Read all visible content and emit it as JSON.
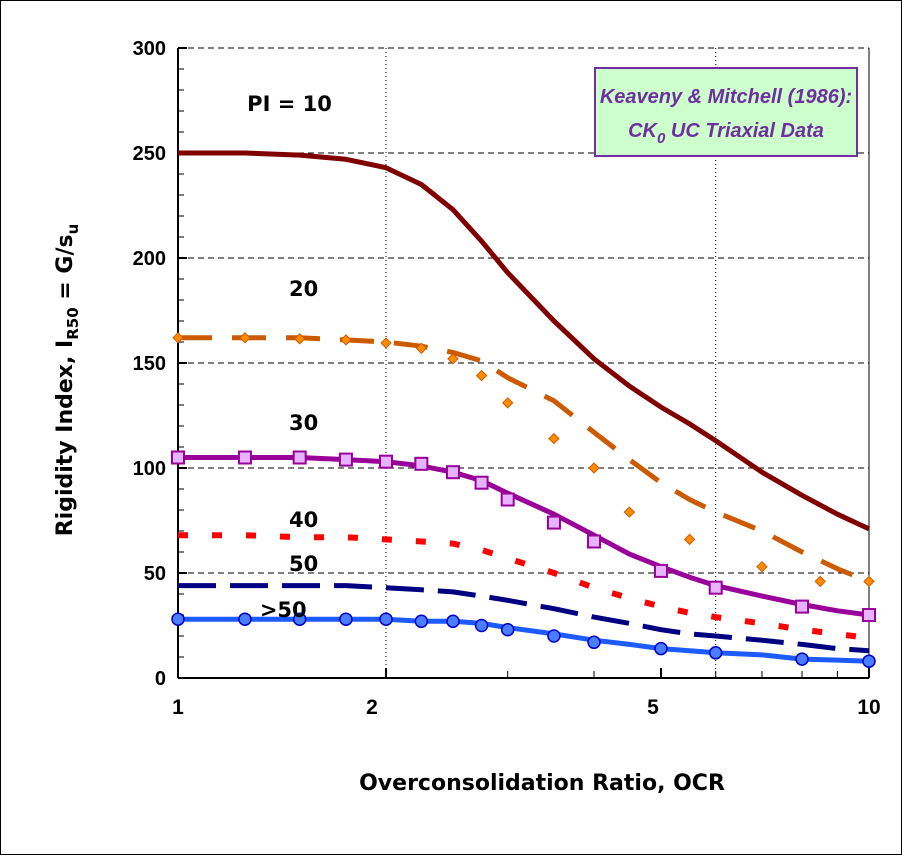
{
  "chart_data": {
    "type": "line",
    "title": "",
    "xlabel": "Overconsolidation Ratio, OCR",
    "ylabel": {
      "main": "Rigidity Index, I",
      "sub": "R50",
      "eq": " = G/s",
      "eq_sub": "u"
    },
    "xscale": "log",
    "xlim": [
      1,
      10
    ],
    "ylim": [
      0,
      300
    ],
    "xticks": [
      1,
      2,
      5,
      10
    ],
    "yticks": [
      0,
      50,
      100,
      150,
      200,
      250,
      300
    ],
    "grid": "dashed horizontal lines at 50-unit steps, dotted vertical lines at OCR 2 and 6",
    "legend_box": {
      "line1": "Keaveny & Mitchell (1986):",
      "line2_pre": "CK",
      "line2_sub": "0",
      "line2_post": " UC Triaxial Data",
      "fill": "#CCFFCC",
      "border": "#6F2F9F",
      "text_color": "#6F2F9F",
      "placement": "top-right"
    },
    "series": [
      {
        "name": "PI = 10",
        "color": "#800000",
        "style": "solid",
        "marker": "none",
        "x": [
          1,
          1.25,
          1.5,
          1.75,
          2,
          2.25,
          2.5,
          2.75,
          3,
          3.5,
          4,
          4.5,
          5,
          5.5,
          6,
          7,
          8,
          9,
          10
        ],
        "y": [
          250,
          250,
          249,
          247,
          243,
          235,
          223,
          208,
          193,
          170,
          152,
          139,
          129,
          121,
          113,
          98,
          87,
          78,
          71
        ]
      },
      {
        "name": "20",
        "color": "#CC5A00",
        "style": "dash",
        "marker": "diamond",
        "x": [
          1,
          1.25,
          1.5,
          1.75,
          2,
          2.25,
          2.5,
          2.75,
          3,
          3.5,
          4,
          4.5,
          5,
          5.5,
          6,
          7,
          8,
          9,
          10
        ],
        "y": [
          162,
          162,
          162,
          161,
          160,
          158,
          155,
          151,
          143,
          132,
          117,
          104,
          93,
          85,
          79,
          70,
          60,
          52,
          46
        ]
      },
      {
        "name": "30",
        "color": "#990099",
        "style": "solid",
        "marker": "square",
        "x": [
          1,
          1.25,
          1.5,
          1.75,
          2,
          2.25,
          2.5,
          2.75,
          3,
          3.5,
          4,
          4.5,
          5,
          5.5,
          6,
          7,
          8,
          9,
          10
        ],
        "y": [
          105,
          105,
          105,
          104,
          103,
          101,
          98,
          94,
          88,
          78,
          68,
          59,
          53,
          48,
          44,
          39,
          35,
          32,
          30
        ]
      },
      {
        "name": "40",
        "color": "#FF0000",
        "style": "dot",
        "marker": "none",
        "x": [
          1,
          1.25,
          1.5,
          1.75,
          2,
          2.25,
          2.5,
          2.75,
          3,
          3.5,
          4,
          4.5,
          5,
          5.5,
          6,
          7,
          8,
          9,
          10
        ],
        "y": [
          68,
          68,
          67,
          67,
          66,
          65,
          64,
          61,
          57,
          50,
          43,
          38,
          34,
          31,
          29,
          26,
          23,
          21,
          19
        ]
      },
      {
        "name": "50",
        "color": "#000080",
        "style": "dash",
        "marker": "none",
        "x": [
          1,
          1.25,
          1.5,
          1.75,
          2,
          2.25,
          2.5,
          2.75,
          3,
          3.5,
          4,
          4.5,
          5,
          5.5,
          6,
          7,
          8,
          9,
          10
        ],
        "y": [
          44,
          44,
          44,
          44,
          43,
          42,
          41,
          39,
          37,
          33,
          29,
          26,
          23,
          21,
          20,
          18,
          16,
          14,
          13
        ]
      },
      {
        "name": ">50",
        "color": "#1E5BFF",
        "style": "solid",
        "marker": "circle",
        "x": [
          1,
          1.25,
          1.5,
          1.75,
          2,
          2.25,
          2.5,
          2.75,
          3,
          3.5,
          4,
          4.5,
          5,
          5.5,
          6,
          7,
          8,
          9,
          10
        ],
        "y": [
          28,
          28,
          28,
          28,
          28,
          27,
          27,
          26,
          24,
          21,
          18,
          16,
          14,
          13,
          12,
          11,
          9,
          8.5,
          8
        ]
      }
    ],
    "markers": {
      "20": {
        "x": [
          1,
          1.25,
          1.5,
          1.75,
          2,
          2.25,
          2.5,
          2.75,
          3,
          3.5,
          4,
          4.5,
          5.5,
          7,
          8.5,
          10
        ],
        "y": [
          162,
          162,
          161.5,
          161,
          159.5,
          157,
          152,
          144,
          131,
          114,
          100,
          79,
          66,
          53,
          46,
          46
        ]
      },
      "30": {
        "x": [
          1,
          1.25,
          1.5,
          1.75,
          2,
          2.25,
          2.5,
          2.75,
          3,
          3.5,
          4,
          5,
          6,
          8,
          10
        ],
        "y": [
          105,
          105,
          105,
          104,
          103,
          102,
          98,
          93,
          85,
          74,
          65,
          51,
          43,
          34,
          30
        ]
      },
      ">50": {
        "x": [
          1,
          1.25,
          1.5,
          1.75,
          2,
          2.25,
          2.5,
          2.75,
          3,
          3.5,
          4,
          5,
          6,
          8,
          10
        ],
        "y": [
          28,
          28,
          28,
          28,
          28,
          27,
          27,
          25,
          23,
          20,
          17,
          14,
          12,
          9,
          8
        ]
      }
    },
    "inline_labels": [
      {
        "text": "PI = 10",
        "x": 1.45,
        "y": 270
      },
      {
        "text": "20",
        "x": 1.52,
        "y": 182
      },
      {
        "text": "30",
        "x": 1.52,
        "y": 118
      },
      {
        "text": "40",
        "x": 1.52,
        "y": 72
      },
      {
        "text": "50",
        "x": 1.52,
        "y": 51
      },
      {
        "text": ">50",
        "x": 1.42,
        "y": 29
      }
    ]
  }
}
